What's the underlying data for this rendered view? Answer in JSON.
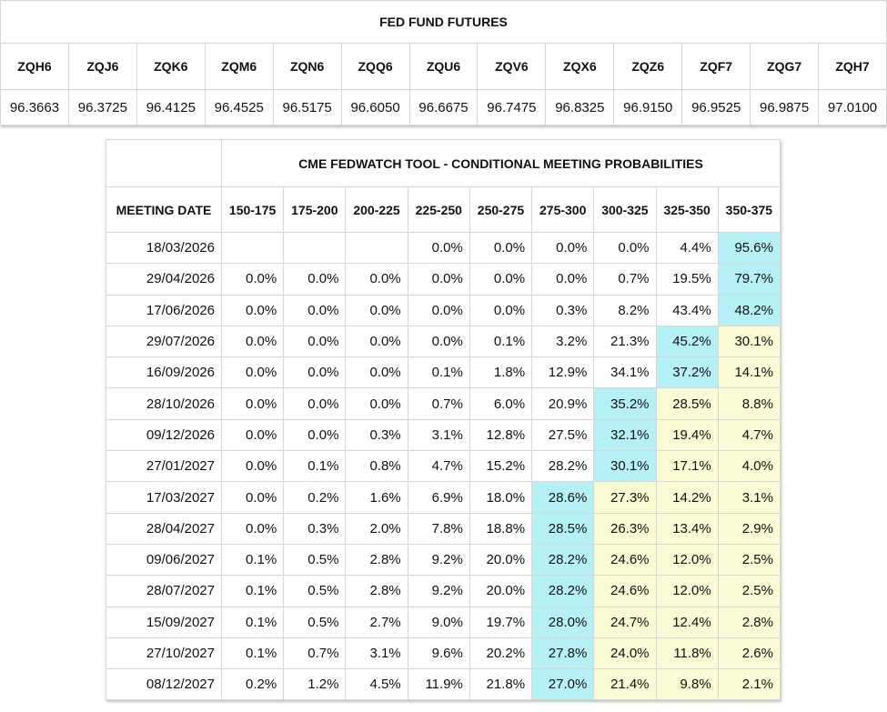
{
  "futures": {
    "title": "FED FUND FUTURES",
    "headers": [
      "ZQH6",
      "ZQJ6",
      "ZQK6",
      "ZQM6",
      "ZQN6",
      "ZQQ6",
      "ZQU6",
      "ZQV6",
      "ZQX6",
      "ZQZ6",
      "ZQF7",
      "ZQG7",
      "ZQH7"
    ],
    "values": [
      "96.3663",
      "96.3725",
      "96.4125",
      "96.4525",
      "96.5175",
      "96.6050",
      "96.6675",
      "96.7475",
      "96.8325",
      "96.9150",
      "96.9525",
      "96.9875",
      "97.0100"
    ]
  },
  "fedwatch": {
    "title": "CME FEDWATCH TOOL - CONDITIONAL MEETING PROBABILITIES",
    "date_header": "MEETING DATE",
    "ranges": [
      "150-175",
      "175-200",
      "200-225",
      "225-250",
      "250-275",
      "275-300",
      "300-325",
      "325-350",
      "350-375"
    ],
    "highlight": {
      "max": "#b5f0f7",
      "after_max": "#fafad4"
    },
    "rows": [
      {
        "date": "18/03/2026",
        "cells": [
          null,
          null,
          null,
          "0.0%",
          "0.0%",
          "0.0%",
          "0.0%",
          "4.4%",
          "95.6%"
        ]
      },
      {
        "date": "29/04/2026",
        "cells": [
          "0.0%",
          "0.0%",
          "0.0%",
          "0.0%",
          "0.0%",
          "0.0%",
          "0.7%",
          "19.5%",
          "79.7%"
        ]
      },
      {
        "date": "17/06/2026",
        "cells": [
          "0.0%",
          "0.0%",
          "0.0%",
          "0.0%",
          "0.0%",
          "0.3%",
          "8.2%",
          "43.4%",
          "48.2%"
        ]
      },
      {
        "date": "29/07/2026",
        "cells": [
          "0.0%",
          "0.0%",
          "0.0%",
          "0.0%",
          "0.1%",
          "3.2%",
          "21.3%",
          "45.2%",
          "30.1%"
        ]
      },
      {
        "date": "16/09/2026",
        "cells": [
          "0.0%",
          "0.0%",
          "0.0%",
          "0.1%",
          "1.8%",
          "12.9%",
          "34.1%",
          "37.2%",
          "14.1%"
        ]
      },
      {
        "date": "28/10/2026",
        "cells": [
          "0.0%",
          "0.0%",
          "0.0%",
          "0.7%",
          "6.0%",
          "20.9%",
          "35.2%",
          "28.5%",
          "8.8%"
        ]
      },
      {
        "date": "09/12/2026",
        "cells": [
          "0.0%",
          "0.0%",
          "0.3%",
          "3.1%",
          "12.8%",
          "27.5%",
          "32.1%",
          "19.4%",
          "4.7%"
        ]
      },
      {
        "date": "27/01/2027",
        "cells": [
          "0.0%",
          "0.1%",
          "0.8%",
          "4.7%",
          "15.2%",
          "28.2%",
          "30.1%",
          "17.1%",
          "4.0%"
        ]
      },
      {
        "date": "17/03/2027",
        "cells": [
          "0.0%",
          "0.2%",
          "1.6%",
          "6.9%",
          "18.0%",
          "28.6%",
          "27.3%",
          "14.2%",
          "3.1%"
        ]
      },
      {
        "date": "28/04/2027",
        "cells": [
          "0.0%",
          "0.3%",
          "2.0%",
          "7.8%",
          "18.8%",
          "28.5%",
          "26.3%",
          "13.4%",
          "2.9%"
        ]
      },
      {
        "date": "09/06/2027",
        "cells": [
          "0.1%",
          "0.5%",
          "2.8%",
          "9.2%",
          "20.0%",
          "28.2%",
          "24.6%",
          "12.0%",
          "2.5%"
        ]
      },
      {
        "date": "28/07/2027",
        "cells": [
          "0.1%",
          "0.5%",
          "2.8%",
          "9.2%",
          "20.0%",
          "28.2%",
          "24.6%",
          "12.0%",
          "2.5%"
        ]
      },
      {
        "date": "15/09/2027",
        "cells": [
          "0.1%",
          "0.5%",
          "2.7%",
          "9.0%",
          "19.7%",
          "28.0%",
          "24.7%",
          "12.4%",
          "2.8%"
        ]
      },
      {
        "date": "27/10/2027",
        "cells": [
          "0.1%",
          "0.7%",
          "3.1%",
          "9.6%",
          "20.2%",
          "27.8%",
          "24.0%",
          "11.8%",
          "2.6%"
        ]
      },
      {
        "date": "08/12/2027",
        "cells": [
          "0.2%",
          "1.2%",
          "4.5%",
          "11.9%",
          "21.8%",
          "27.0%",
          "21.4%",
          "9.8%",
          "2.1%"
        ]
      }
    ]
  }
}
